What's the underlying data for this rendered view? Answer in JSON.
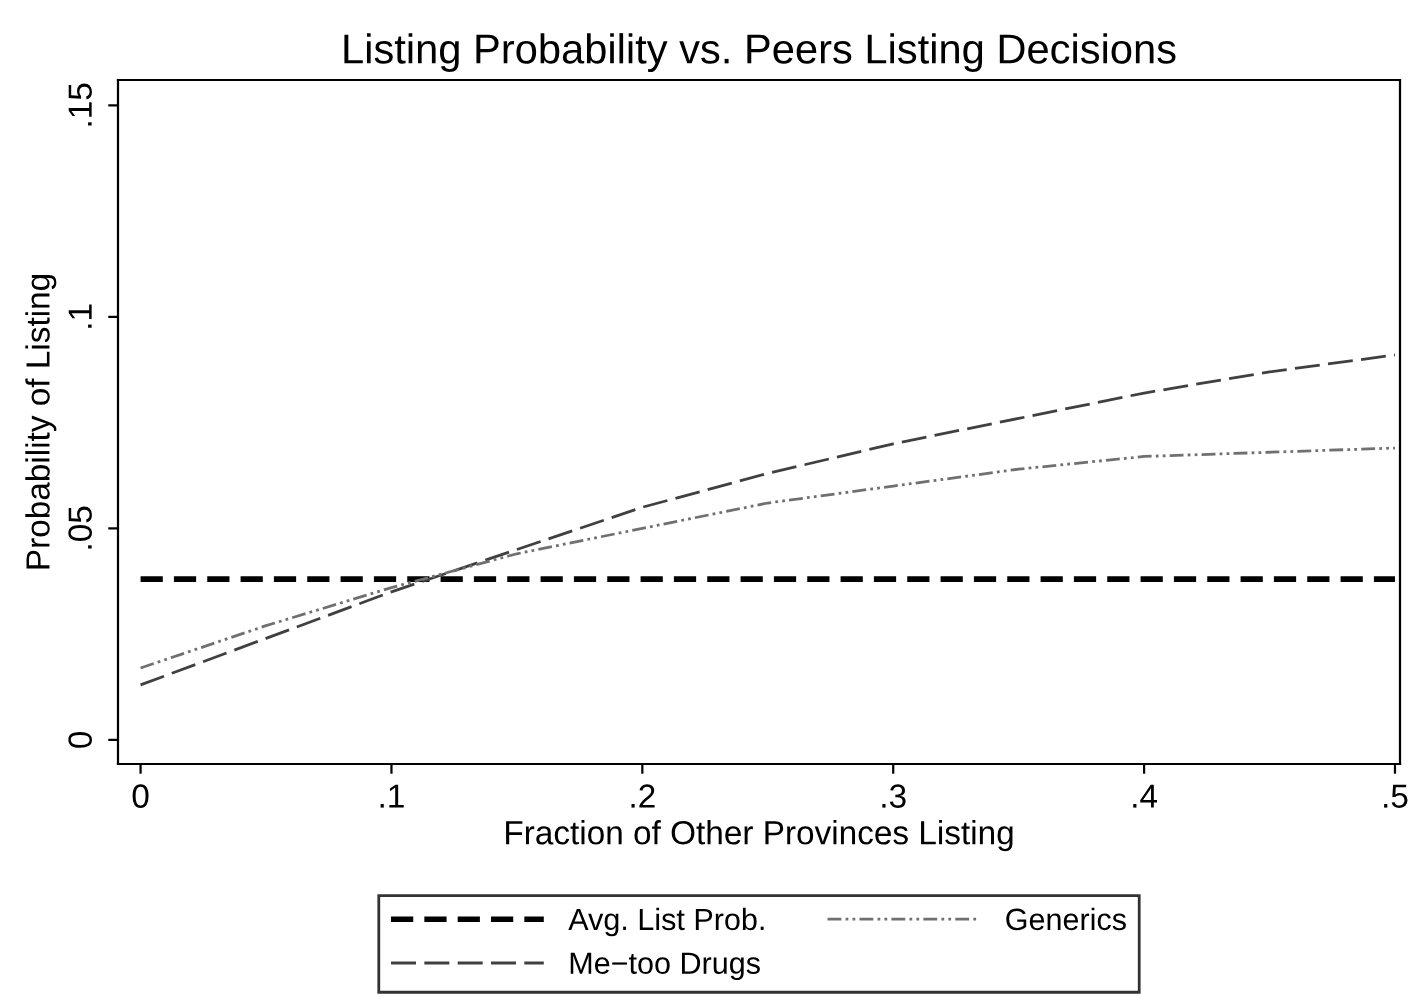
{
  "chart_data": {
    "type": "line",
    "title": "Listing Probability vs. Peers Listing Decisions",
    "xlabel": "Fraction of Other Provinces Listing",
    "ylabel": "Probability of Listing",
    "x": [
      0,
      0.05,
      0.1,
      0.15,
      0.2,
      0.25,
      0.3,
      0.35,
      0.4,
      0.45,
      0.5
    ],
    "series": [
      {
        "name": "Avg. List Prob.",
        "color": "#000000",
        "line_style": "dashed",
        "values": [
          0.038,
          0.038,
          0.038,
          0.038,
          0.038,
          0.038,
          0.038,
          0.038,
          0.038,
          0.038,
          0.038
        ]
      },
      {
        "name": "Me−too Drugs",
        "color": "#404040",
        "line_style": "dashed",
        "values": [
          0.013,
          0.024,
          0.035,
          0.045,
          0.055,
          0.063,
          0.07,
          0.076,
          0.082,
          0.087,
          0.091
        ]
      },
      {
        "name": "Generics",
        "color": "#707070",
        "line_style": "dotted",
        "values": [
          0.017,
          0.027,
          0.036,
          0.044,
          0.05,
          0.056,
          0.06,
          0.064,
          0.067,
          0.068,
          0.069
        ]
      }
    ],
    "xlim": [
      -0.009,
      0.502
    ],
    "ylim": [
      -0.0057,
      0.156
    ],
    "xticks": [
      0,
      {
        "value": 0.1,
        "label": ".1"
      },
      {
        "value": 0.2,
        "label": ".2"
      },
      {
        "value": 0.3,
        "label": ".3"
      },
      {
        "value": 0.4,
        "label": ".4"
      },
      {
        "value": 0.5,
        "label": ".5"
      }
    ],
    "yticks": [
      0,
      {
        "value": 0.05,
        "label": ".05"
      },
      {
        "value": 0.1,
        "label": ".1"
      },
      {
        "value": 0.15,
        "label": ".15"
      }
    ],
    "grid": false,
    "legend": "bottom",
    "marker": "none"
  }
}
